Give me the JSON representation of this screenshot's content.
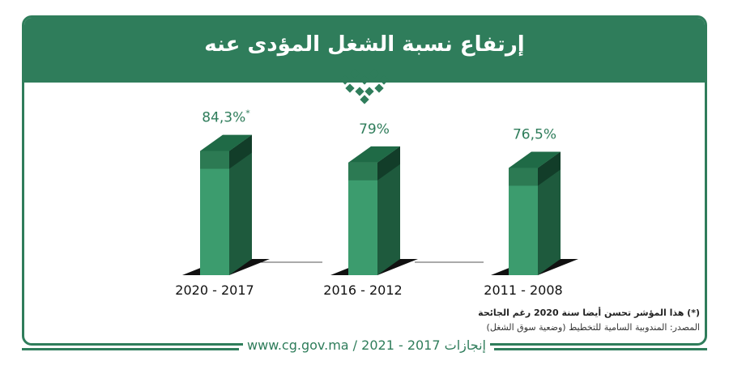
{
  "title": "إرتفاع نسبة الشغل المؤدى عنه",
  "note": "(*) هذا المؤشر تحسن أيضا سنة 2020 رغم الجائحة",
  "source": "المصدر: المندوبية السامية للتخطيط (وضعية سوق الشغل)",
  "footer": "www.cg.gov.ma / 2021 - 2017 إنجازات",
  "colors": {
    "brand": "#2f7d5b",
    "bar_front": "#3c9c6e",
    "bar_side": "#1e5a3d",
    "bar_top": "#2c7a53",
    "shadow": "#111111"
  },
  "chart_data": {
    "type": "bar",
    "categories": [
      "2020 - 2017",
      "2016 - 2012",
      "2011 - 2008"
    ],
    "values": [
      84.3,
      79,
      76.5
    ],
    "value_labels": [
      "84,3%",
      "79%",
      "76,5%"
    ],
    "value_label_marks": [
      "*",
      "",
      ""
    ],
    "unit": "%",
    "ylim": [
      70,
      86
    ]
  }
}
